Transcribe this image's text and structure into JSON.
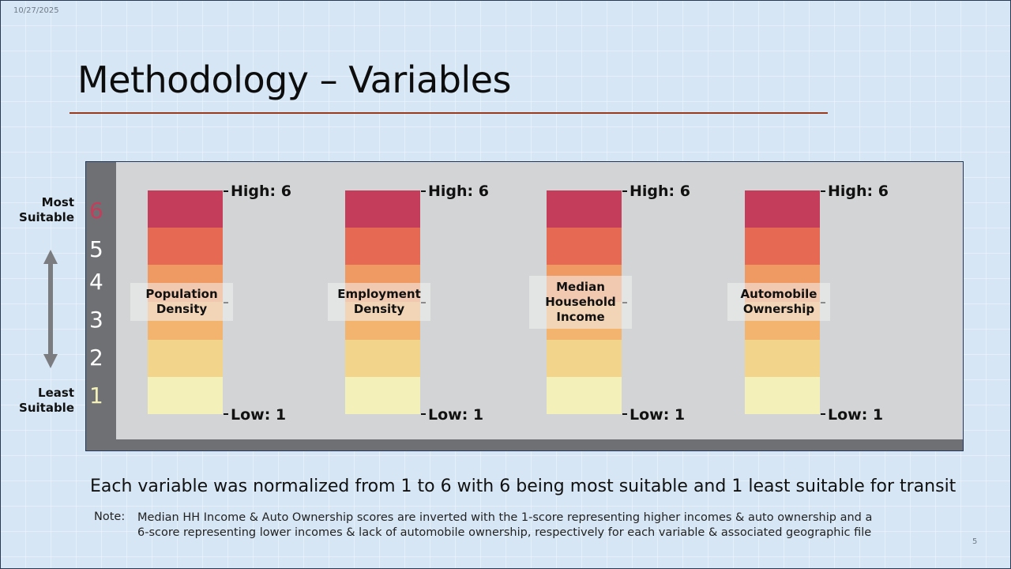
{
  "header": {
    "date": "10/27/2025",
    "title": "Methodology – Variables",
    "slide_number": "5"
  },
  "scale": {
    "top_label": "Most Suitable",
    "bottom_label": "Least Suitable",
    "numbers": [
      "6",
      "5",
      "4",
      "3",
      "2",
      "1"
    ],
    "number_colors": [
      "#c43d5a",
      "#ffffff",
      "#ffffff",
      "#ffffff",
      "#ffffff",
      "#f3f1b9"
    ]
  },
  "colors": {
    "score_6": "#c43d5a",
    "score_5": "#e66953",
    "score_4": "#f09a63",
    "score_3": "#f3b470",
    "score_2": "#f2d48b",
    "score_1": "#f3f1b9"
  },
  "variables": [
    {
      "label_lines": [
        "Population",
        "Density"
      ],
      "high_label": "High: 6",
      "low_label": "Low: 1"
    },
    {
      "label_lines": [
        "Employment",
        "Density"
      ],
      "high_label": "High: 6",
      "low_label": "Low: 1"
    },
    {
      "label_lines": [
        "Median",
        "Household",
        "Income"
      ],
      "high_label": "High: 6",
      "low_label": "Low: 1"
    },
    {
      "label_lines": [
        "Automobile",
        "Ownership"
      ],
      "high_label": "High: 6",
      "low_label": "Low: 1"
    }
  ],
  "caption": "Each variable was normalized from 1 to 6 with 6 being most suitable and 1 least suitable for transit",
  "note": {
    "key": "Note:",
    "line1": "Median HH Income & Auto Ownership scores are inverted with the 1-score representing higher incomes & auto ownership and a",
    "line2": "6-score representing lower incomes & lack of automobile ownership, respectively for each variable & associated geographic file"
  }
}
